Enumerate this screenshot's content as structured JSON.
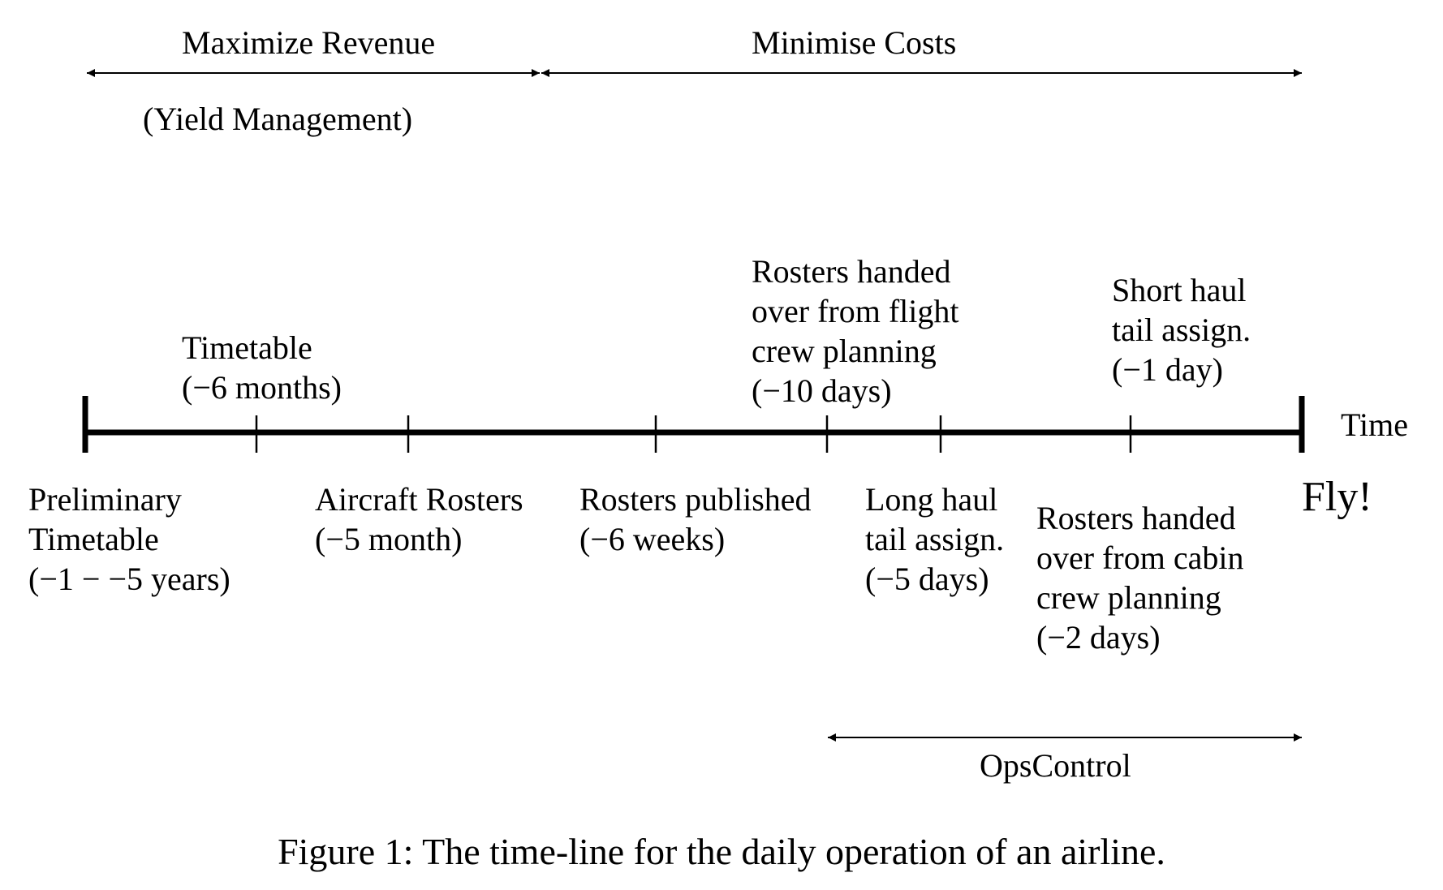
{
  "ranges": {
    "revenue": {
      "label": "Maximize Revenue",
      "sublabel": "(Yield Management)"
    },
    "costs": {
      "label": "Minimise Costs"
    },
    "ops": {
      "label": "OpsControl"
    }
  },
  "axis": {
    "label": "Time"
  },
  "events_above": {
    "timetable": [
      "Timetable",
      "(−6 months)"
    ],
    "flight_crew": [
      "Rosters handed",
      "over from flight",
      "crew planning",
      "(−10 days)"
    ],
    "short_haul": [
      "Short haul",
      "tail assign.",
      "(−1 day)"
    ]
  },
  "events_below": {
    "preliminary": [
      "Preliminary",
      "Timetable",
      "(−1 − −5 years)"
    ],
    "aircraft": [
      "Aircraft Rosters",
      "(−5 month)"
    ],
    "published": [
      "Rosters published",
      "(−6 weeks)"
    ],
    "long_haul": [
      "Long haul",
      "tail assign.",
      "(−5 days)"
    ],
    "cabin_crew": [
      "Rosters handed",
      "over from cabin",
      "crew planning",
      "(−2 days)"
    ]
  },
  "end_label": "Fly!",
  "caption": "Figure 1: The time-line for the daily operation of an airline."
}
